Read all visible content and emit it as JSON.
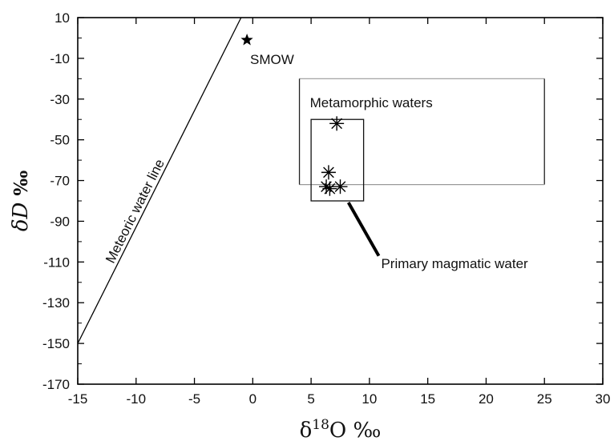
{
  "chart_data": {
    "type": "scatter",
    "xlabel": {
      "main": "δ",
      "sup": "18",
      "post": "O ‰"
    },
    "ylabel": {
      "main": "δD",
      "post": " ‰"
    },
    "xlim": [
      -15,
      30
    ],
    "ylim": [
      -170,
      10
    ],
    "x_ticks": [
      -15,
      -10,
      -5,
      0,
      5,
      10,
      15,
      20,
      25,
      30
    ],
    "y_ticks": [
      10,
      -10,
      -30,
      -50,
      -70,
      -90,
      -110,
      -130,
      -150,
      -170
    ],
    "grid": false,
    "meteoric_line": {
      "label": "Meteoric water line",
      "x": [
        -15,
        -1
      ],
      "y": [
        -150,
        10
      ]
    },
    "smow": {
      "label": "SMOW",
      "x": -0.5,
      "y": -1
    },
    "samples": [
      {
        "x": 7.2,
        "y": -42
      },
      {
        "x": 6.5,
        "y": -66
      },
      {
        "x": 6.3,
        "y": -73
      },
      {
        "x": 6.6,
        "y": -74
      },
      {
        "x": 7.5,
        "y": -73
      }
    ],
    "regions": [
      {
        "label": "Metamorphic waters",
        "x": [
          4,
          25
        ],
        "y": [
          -72,
          -20
        ]
      },
      {
        "label": "Primary magmatic water",
        "x": [
          5,
          9.5
        ],
        "y": [
          -80,
          -40
        ]
      }
    ]
  }
}
